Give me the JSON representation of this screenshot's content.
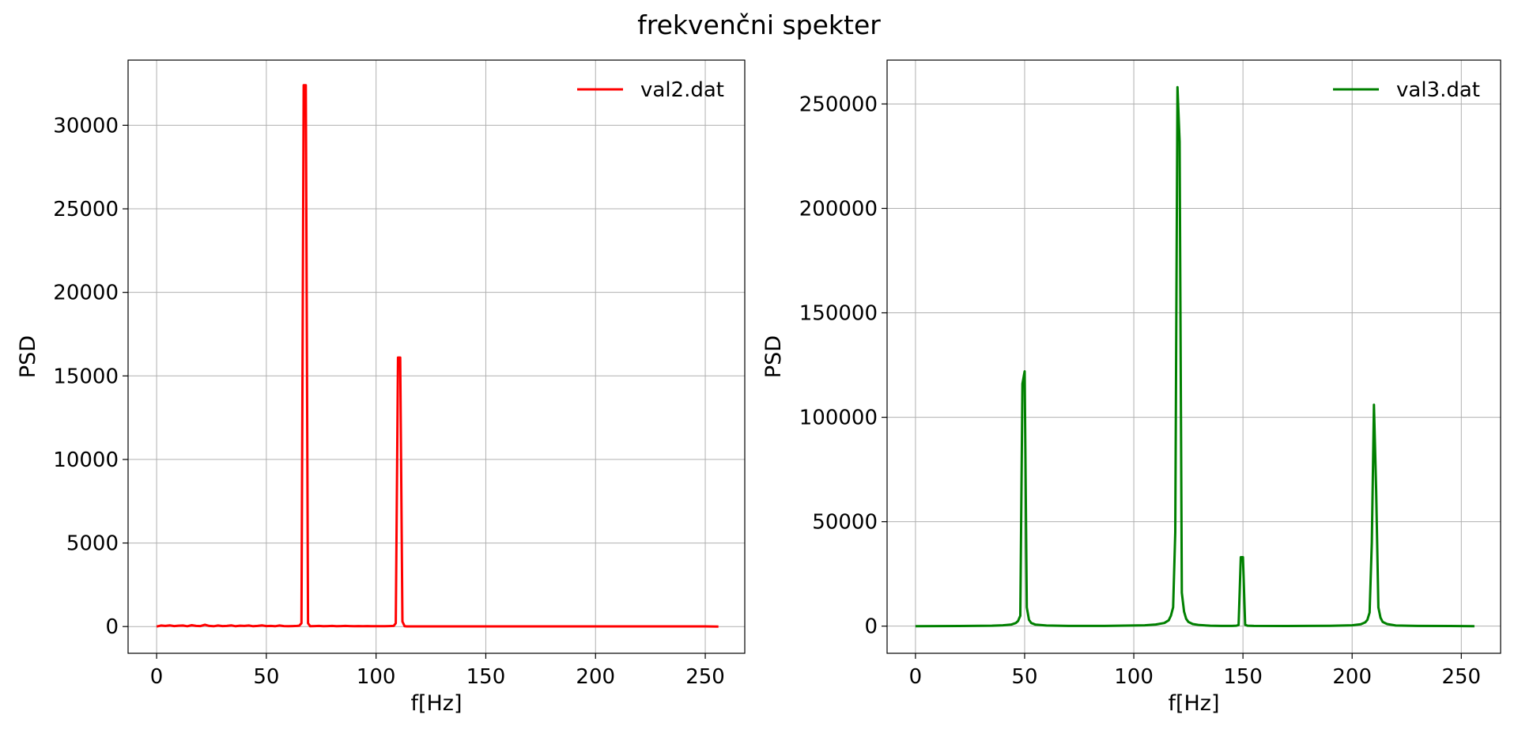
{
  "title": "frekvenčni spekter",
  "chart_data": [
    {
      "type": "line",
      "xlabel": "f[Hz]",
      "ylabel": "PSD",
      "xlim": [
        -13,
        268
      ],
      "ylim": [
        -1600,
        33900
      ],
      "xticks": [
        0,
        50,
        100,
        150,
        200,
        250
      ],
      "yticks": [
        0,
        5000,
        10000,
        15000,
        20000,
        25000,
        30000
      ],
      "grid": true,
      "legend_position": "upper right",
      "series": [
        {
          "name": "val2.dat",
          "color": "#ff0000",
          "x": [
            0,
            2,
            4,
            6,
            8,
            10,
            12,
            14,
            16,
            18,
            20,
            22,
            24,
            26,
            28,
            30,
            32,
            34,
            36,
            38,
            40,
            42,
            44,
            46,
            48,
            50,
            52,
            54,
            56,
            58,
            60,
            62,
            64,
            65,
            66,
            67,
            68,
            69,
            70,
            72,
            74,
            76,
            78,
            80,
            82,
            84,
            86,
            88,
            90,
            92,
            94,
            96,
            98,
            100,
            102,
            104,
            106,
            108,
            109,
            110,
            111,
            112,
            113,
            114,
            116,
            120,
            130,
            140,
            150,
            160,
            170,
            180,
            190,
            200,
            210,
            220,
            230,
            240,
            250,
            256
          ],
          "y": [
            0,
            60,
            40,
            70,
            30,
            50,
            60,
            20,
            80,
            40,
            30,
            110,
            40,
            20,
            60,
            30,
            40,
            70,
            20,
            50,
            40,
            60,
            20,
            40,
            70,
            30,
            40,
            20,
            60,
            30,
            20,
            30,
            40,
            50,
            200,
            32400,
            32400,
            200,
            20,
            30,
            40,
            20,
            30,
            40,
            20,
            30,
            40,
            30,
            20,
            30,
            20,
            30,
            20,
            20,
            20,
            20,
            30,
            40,
            200,
            16100,
            16100,
            300,
            20,
            10,
            10,
            10,
            10,
            10,
            10,
            10,
            10,
            10,
            10,
            10,
            10,
            10,
            10,
            10,
            10,
            0
          ]
        }
      ]
    },
    {
      "type": "line",
      "xlabel": "f[Hz]",
      "ylabel": "PSD",
      "xlim": [
        -13,
        268
      ],
      "ylim": [
        -13000,
        271000
      ],
      "xticks": [
        0,
        50,
        100,
        150,
        200,
        250
      ],
      "yticks": [
        0,
        50000,
        100000,
        150000,
        200000,
        250000
      ],
      "grid": true,
      "legend_position": "upper right",
      "series": [
        {
          "name": "val3.dat",
          "color": "#008000",
          "x": [
            0,
            20,
            35,
            40,
            44,
            46,
            47,
            48,
            49,
            50,
            51,
            52,
            53,
            55,
            60,
            70,
            90,
            105,
            110,
            114,
            116,
            117,
            118,
            119,
            120,
            121,
            122,
            123,
            124,
            125,
            127,
            130,
            135,
            140,
            145,
            147,
            148,
            149,
            150,
            151,
            152,
            155,
            170,
            190,
            200,
            204,
            206,
            207,
            208,
            209,
            210,
            211,
            212,
            213,
            214,
            216,
            220,
            230,
            245,
            256
          ],
          "y": [
            0,
            50,
            200,
            400,
            800,
            1500,
            2500,
            5000,
            116000,
            122000,
            9000,
            3000,
            1500,
            700,
            300,
            100,
            150,
            400,
            800,
            1500,
            2800,
            5000,
            9000,
            45000,
            258000,
            232000,
            16000,
            7000,
            3500,
            2000,
            1000,
            500,
            200,
            100,
            100,
            200,
            500,
            33000,
            33000,
            600,
            200,
            100,
            50,
            150,
            400,
            900,
            1800,
            3000,
            6500,
            40000,
            106000,
            65000,
            9000,
            4000,
            2000,
            1000,
            300,
            100,
            50,
            0
          ]
        }
      ]
    }
  ]
}
